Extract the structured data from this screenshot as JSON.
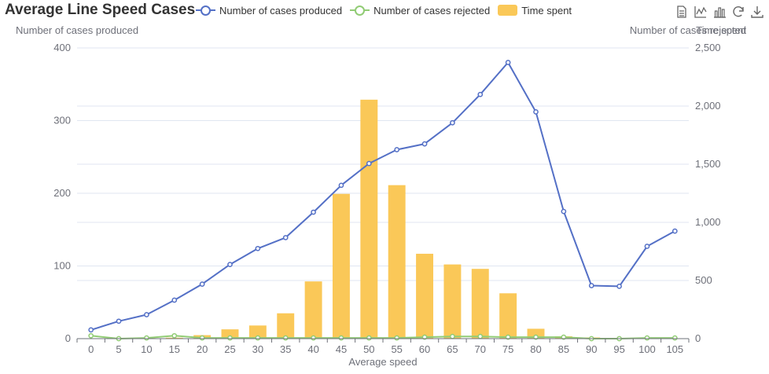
{
  "chart_data": {
    "type": "bar+line",
    "title": "Average Line Speed Cases",
    "xlabel": "Average speed",
    "ylabel_left": "Number of cases produced",
    "ylabel_right_1": "Number of cases rejected",
    "ylabel_right_2": "Time spent",
    "categories": [
      "0",
      "5",
      "10",
      "15",
      "20",
      "25",
      "30",
      "35",
      "40",
      "45",
      "50",
      "55",
      "60",
      "65",
      "70",
      "75",
      "80",
      "85",
      "90",
      "95",
      "100",
      "105"
    ],
    "ylim_left": [
      0,
      400
    ],
    "yticks_left": [
      "0",
      "100",
      "200",
      "300",
      "400"
    ],
    "ylim_right": [
      0,
      2500
    ],
    "yticks_right": [
      "0",
      "500",
      "1,000",
      "1,500",
      "2,000",
      "2,500"
    ],
    "series": [
      {
        "name": "Number of cases produced",
        "type": "line",
        "axis": "left",
        "color": "#5470c6",
        "values": [
          12,
          24,
          33,
          53,
          75,
          102,
          124,
          139,
          174,
          211,
          241,
          260,
          268,
          297,
          336,
          380,
          312,
          175,
          73,
          72,
          127,
          148
        ]
      },
      {
        "name": "Number of cases rejected",
        "type": "line",
        "axis": "left",
        "color": "#91cc75",
        "values": [
          4,
          0,
          1,
          4,
          1,
          1,
          1,
          1,
          1,
          1,
          1,
          1,
          2,
          3,
          3,
          2,
          2,
          2,
          0,
          0,
          1,
          1
        ]
      },
      {
        "name": "Time spent",
        "type": "bar",
        "axis": "right",
        "color": "#fac858",
        "values": [
          2,
          3,
          5,
          8,
          30,
          80,
          113,
          218,
          492,
          1245,
          2055,
          1320,
          730,
          638,
          600,
          390,
          85,
          20,
          10,
          2,
          2,
          2
        ]
      }
    ],
    "legend_position": "top",
    "grid": true
  },
  "toolbox": {
    "icons": [
      "data-view-icon",
      "line-chart-icon",
      "bar-chart-icon",
      "restore-icon",
      "save-image-icon"
    ]
  }
}
